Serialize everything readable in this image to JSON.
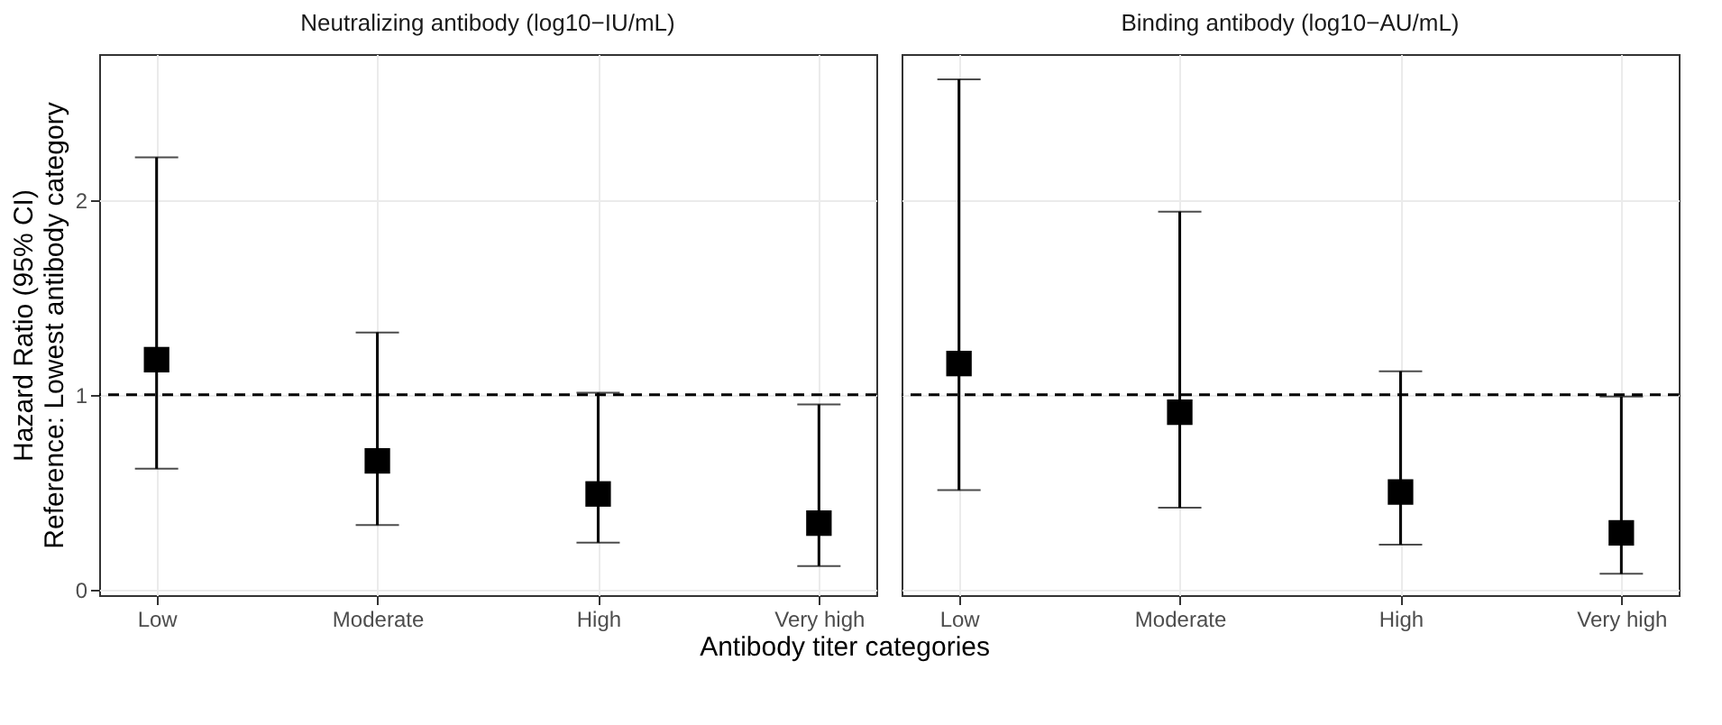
{
  "chart_data": [
    {
      "type": "scatter",
      "title": "Neutralizing antibody (log10−IU/mL)",
      "xlabel": "Antibody titer categories",
      "ylabel": "Hazard Ratio (95% CI)\nReference: Lowest antibody category",
      "categories": [
        "Low",
        "Moderate",
        "High",
        "Very high"
      ],
      "series": [
        {
          "color": "#000000",
          "values": [
            1.18,
            0.66,
            0.49,
            0.34
          ],
          "errors": [
            [
              0.62,
              2.22
            ],
            [
              0.33,
              1.32
            ],
            [
              0.24,
              1.01
            ],
            [
              0.12,
              0.95
            ]
          ]
        }
      ],
      "ylim": [
        -0.03,
        2.75
      ],
      "yticks": [
        0,
        1,
        2
      ],
      "grid": true,
      "marker": "square",
      "ref_lines": [
        {
          "axis": "y",
          "value": 1,
          "line_style": "dashed",
          "color": "#000000"
        }
      ]
    },
    {
      "type": "scatter",
      "title": "Binding antibody (log10−AU/mL)",
      "categories": [
        "Low",
        "Moderate",
        "High",
        "Very high"
      ],
      "series": [
        {
          "color": "#000000",
          "values": [
            1.16,
            0.91,
            0.5,
            0.29
          ],
          "errors": [
            [
              0.51,
              2.62
            ],
            [
              0.42,
              1.94
            ],
            [
              0.23,
              1.12
            ],
            [
              0.08,
              0.99
            ]
          ]
        }
      ],
      "ylim": [
        -0.03,
        2.75
      ],
      "yticks": [
        0,
        1,
        2
      ],
      "grid": true,
      "marker": "square",
      "tick_labels": "x",
      "ref_lines": [
        {
          "axis": "y",
          "value": 1,
          "line_style": "dashed",
          "color": "#000000"
        }
      ]
    }
  ]
}
